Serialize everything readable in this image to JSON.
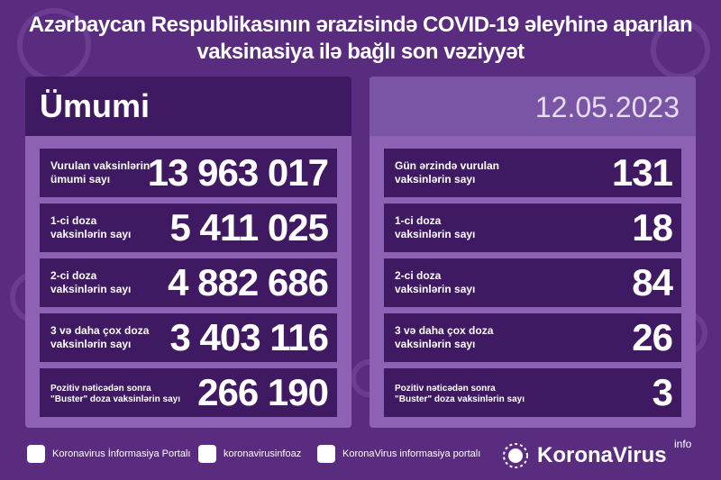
{
  "header": {
    "title_lines": [
      "Azərbaycan Respublikasının ərazisində COVID-19 əleyhinə aparılan",
      "vaksinasiya ilə bağlı son vəziyyət"
    ]
  },
  "left_panel": {
    "title": "Ümumi",
    "rows": [
      {
        "label": [
          "Vurulan vaksinlərin",
          "ümumi sayı"
        ],
        "value": "13 963 017"
      },
      {
        "label": [
          "1-ci doza",
          "vaksinlərin sayı"
        ],
        "value": "5 411 025"
      },
      {
        "label": [
          "2-ci doza",
          "vaksinlərin sayı"
        ],
        "value": "4 882 686"
      },
      {
        "label": [
          "3 və daha çox doza",
          "vaksinlərin sayı"
        ],
        "value": "3 403 116"
      },
      {
        "label": [
          "Pozitiv nəticədən sonra",
          "\"Buster\" doza vaksinlərin sayı"
        ],
        "value": "266 190"
      }
    ]
  },
  "right_panel": {
    "title": "12.05.2023",
    "rows": [
      {
        "label": [
          "Gün ərzində vurulan",
          "vaksinlərin sayı"
        ],
        "value": "131"
      },
      {
        "label": [
          "1-ci doza",
          "vaksinlərin sayı"
        ],
        "value": "18"
      },
      {
        "label": [
          "2-ci doza",
          "vaksinlərin sayı"
        ],
        "value": "84"
      },
      {
        "label": [
          "3 və daha çox doza",
          "vaksinlərin sayı"
        ],
        "value": "26"
      },
      {
        "label": [
          "Pozitiv nəticədən sonra",
          "\"Buster\" doza vaksinlərin sayı"
        ],
        "value": "3"
      }
    ]
  },
  "footer": {
    "links": [
      "Koronavirus İnformasiya Portalı",
      "koronavirusinfoaz",
      "KoronaVirus informasiya portalı"
    ],
    "logo": {
      "name": "KoronaVirus",
      "suffix": "info"
    }
  }
}
